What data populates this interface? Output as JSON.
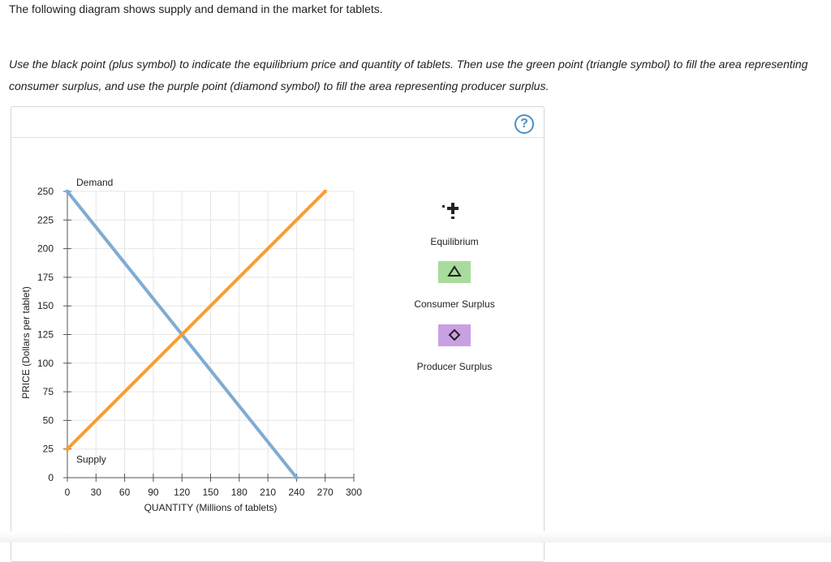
{
  "intro": "The following diagram shows supply and demand in the market for tablets.",
  "instructions": "Use the black point (plus symbol) to indicate the equilibrium price and quantity of tablets. Then use the green point (triangle symbol) to fill the area representing consumer surplus, and use the purple point (diamond symbol) to fill the area representing producer surplus.",
  "help_icon": "?",
  "colors": {
    "demand": "#7fabd2",
    "supply": "#ff9a2e",
    "consumer_surplus": "#a8dc9c",
    "producer_surplus": "#c9a0e4",
    "grid": "#e6e6e6"
  },
  "chart_data": {
    "type": "line",
    "xlabel": "QUANTITY (Millions of tablets)",
    "ylabel": "PRICE (Dollars per tablet)",
    "xlim": [
      0,
      300
    ],
    "ylim": [
      0,
      250
    ],
    "x_ticks": [
      0,
      30,
      60,
      90,
      120,
      150,
      180,
      210,
      240,
      270,
      300
    ],
    "y_ticks": [
      0,
      25,
      50,
      75,
      100,
      125,
      150,
      175,
      200,
      225,
      250
    ],
    "grid": true,
    "series": [
      {
        "name": "Demand",
        "color": "#7fabd2",
        "points": [
          [
            0,
            250
          ],
          [
            240,
            0
          ]
        ]
      },
      {
        "name": "Supply",
        "color": "#ff9a2e",
        "points": [
          [
            0,
            25
          ],
          [
            270,
            250
          ]
        ]
      }
    ]
  },
  "legend_tools": [
    {
      "label": "Equilibrium",
      "icon": "plus-icon"
    },
    {
      "label": "Consumer Surplus",
      "icon": "triangle-icon"
    },
    {
      "label": "Producer Surplus",
      "icon": "diamond-icon"
    }
  ]
}
